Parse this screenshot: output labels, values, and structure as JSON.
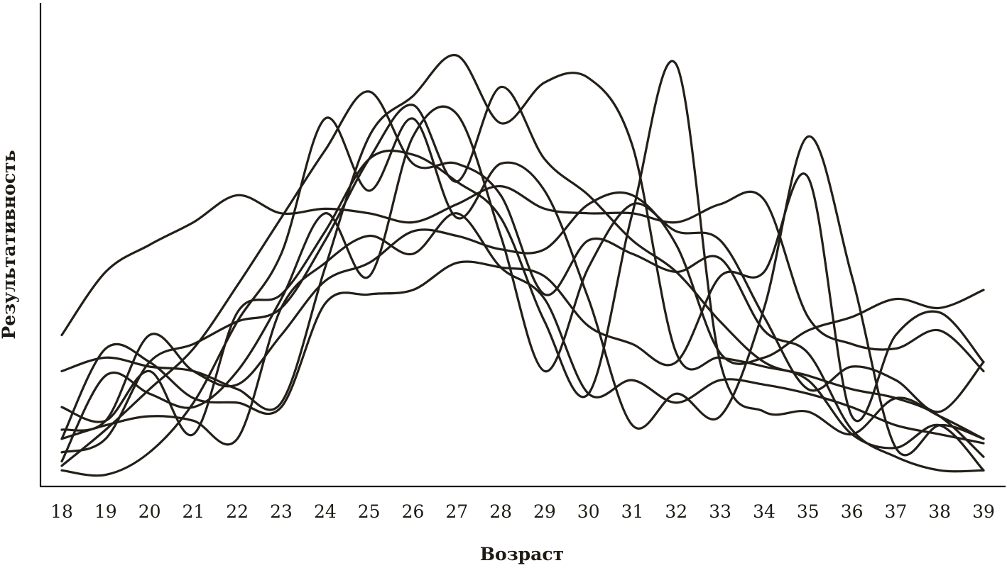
{
  "chart_data": {
    "type": "line",
    "title": "",
    "xlabel": "Возраст",
    "ylabel": "Результативность",
    "x": [
      18,
      19,
      20,
      21,
      22,
      23,
      24,
      25,
      26,
      27,
      28,
      29,
      30,
      31,
      32,
      33,
      34,
      35,
      36,
      37,
      38,
      39
    ],
    "xlim": [
      17.5,
      40
    ],
    "ylim": [
      0,
      100
    ],
    "grid": false,
    "legend": "none",
    "line_color": "#231f18",
    "series": [
      {
        "values": [
          32,
          46,
          52,
          57,
          63,
          59,
          60,
          59,
          57,
          61,
          65,
          60,
          59,
          59,
          57,
          61,
          62,
          36,
          30,
          29,
          33,
          24
        ]
      },
      {
        "values": [
          24,
          27,
          25,
          24,
          20,
          17,
          47,
          76,
          85,
          94,
          79,
          88,
          89,
          74,
          28,
          27,
          25,
          22,
          10,
          7,
          12,
          2
        ]
      },
      {
        "values": [
          6,
          9,
          26,
          30,
          35,
          38,
          53,
          71,
          83,
          66,
          87,
          71,
          63,
          53,
          46,
          35,
          26,
          23,
          20,
          18,
          14,
          5
        ]
      },
      {
        "values": [
          3,
          11,
          20,
          29,
          43,
          58,
          73,
          86,
          70,
          70,
          63,
          41,
          53,
          50,
          46,
          49,
          33,
          28,
          11,
          5,
          2,
          2
        ]
      },
      {
        "values": [
          9,
          12,
          14,
          13,
          9,
          38,
          48,
          54,
          50,
          59,
          47,
          40,
          19,
          22,
          17,
          22,
          21,
          19,
          16,
          12,
          10,
          8
        ]
      },
      {
        "values": [
          2,
          1,
          6,
          17,
          35,
          50,
          80,
          64,
          80,
          58,
          70,
          64,
          40,
          12,
          19,
          14,
          38,
          76,
          45,
          7,
          12,
          9
        ]
      },
      {
        "values": [
          4,
          23,
          19,
          16,
          24,
          40,
          59,
          45,
          76,
          81,
          54,
          24,
          47,
          61,
          55,
          53,
          36,
          20,
          25,
          22,
          15,
          26
        ]
      },
      {
        "values": [
          16,
          13,
          24,
          10,
          37,
          41,
          55,
          71,
          72,
          66,
          58,
          35,
          19,
          59,
          92,
          26,
          15,
          15,
          10,
          18,
          14,
          9
        ]
      },
      {
        "values": [
          9,
          29,
          26,
          18,
          17,
          16,
          39,
          41,
          42,
          48,
          47,
          45,
          34,
          30,
          26,
          45,
          46,
          67,
          14,
          32,
          37,
          26
        ]
      },
      {
        "values": [
          11,
          13,
          32,
          24,
          21,
          32,
          44,
          48,
          55,
          54,
          51,
          51,
          61,
          63,
          52,
          28,
          27,
          33,
          36,
          40,
          38,
          42
        ]
      }
    ]
  }
}
